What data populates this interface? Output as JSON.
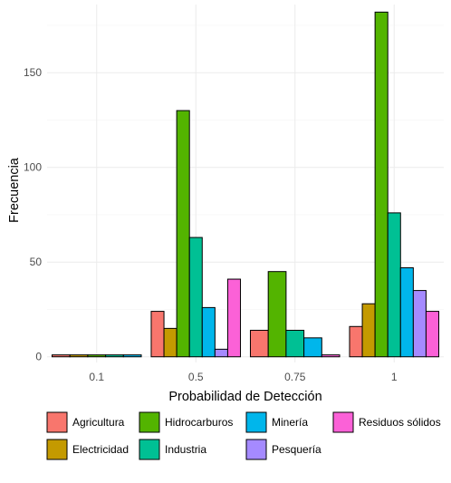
{
  "chart_data": {
    "type": "bar",
    "title": "",
    "xlabel": "Probabilidad de Detección",
    "ylabel": "Frecuencia",
    "ylim": [
      -3,
      186
    ],
    "yticks": [
      0,
      50,
      100,
      150
    ],
    "grid": true,
    "legend_position": "bottom",
    "categories": [
      "0.1",
      "0.5",
      "0.75",
      "1"
    ],
    "series": [
      {
        "name": "Agricultura",
        "color": "#F8766D",
        "values": [
          1,
          24,
          14,
          16
        ]
      },
      {
        "name": "Electricidad",
        "color": "#C49A00",
        "values": [
          1,
          15,
          null,
          28
        ]
      },
      {
        "name": "Hidrocarburos",
        "color": "#53B400",
        "values": [
          1,
          130,
          45,
          182
        ]
      },
      {
        "name": "Industria",
        "color": "#00C094",
        "values": [
          1,
          63,
          14,
          76
        ]
      },
      {
        "name": "Minería",
        "color": "#00B6EB",
        "values": [
          1,
          26,
          10,
          47
        ]
      },
      {
        "name": "Pesquería",
        "color": "#A58AFF",
        "values": [
          null,
          4,
          null,
          35
        ]
      },
      {
        "name": "Residuos sólidos",
        "color": "#FB61D7",
        "values": [
          null,
          41,
          1,
          24
        ]
      }
    ],
    "legend_order": [
      "Agricultura",
      "Hidrocarburos",
      "Minería",
      "Residuos sólidos",
      "Electricidad",
      "Industria",
      "Pesquería"
    ]
  }
}
